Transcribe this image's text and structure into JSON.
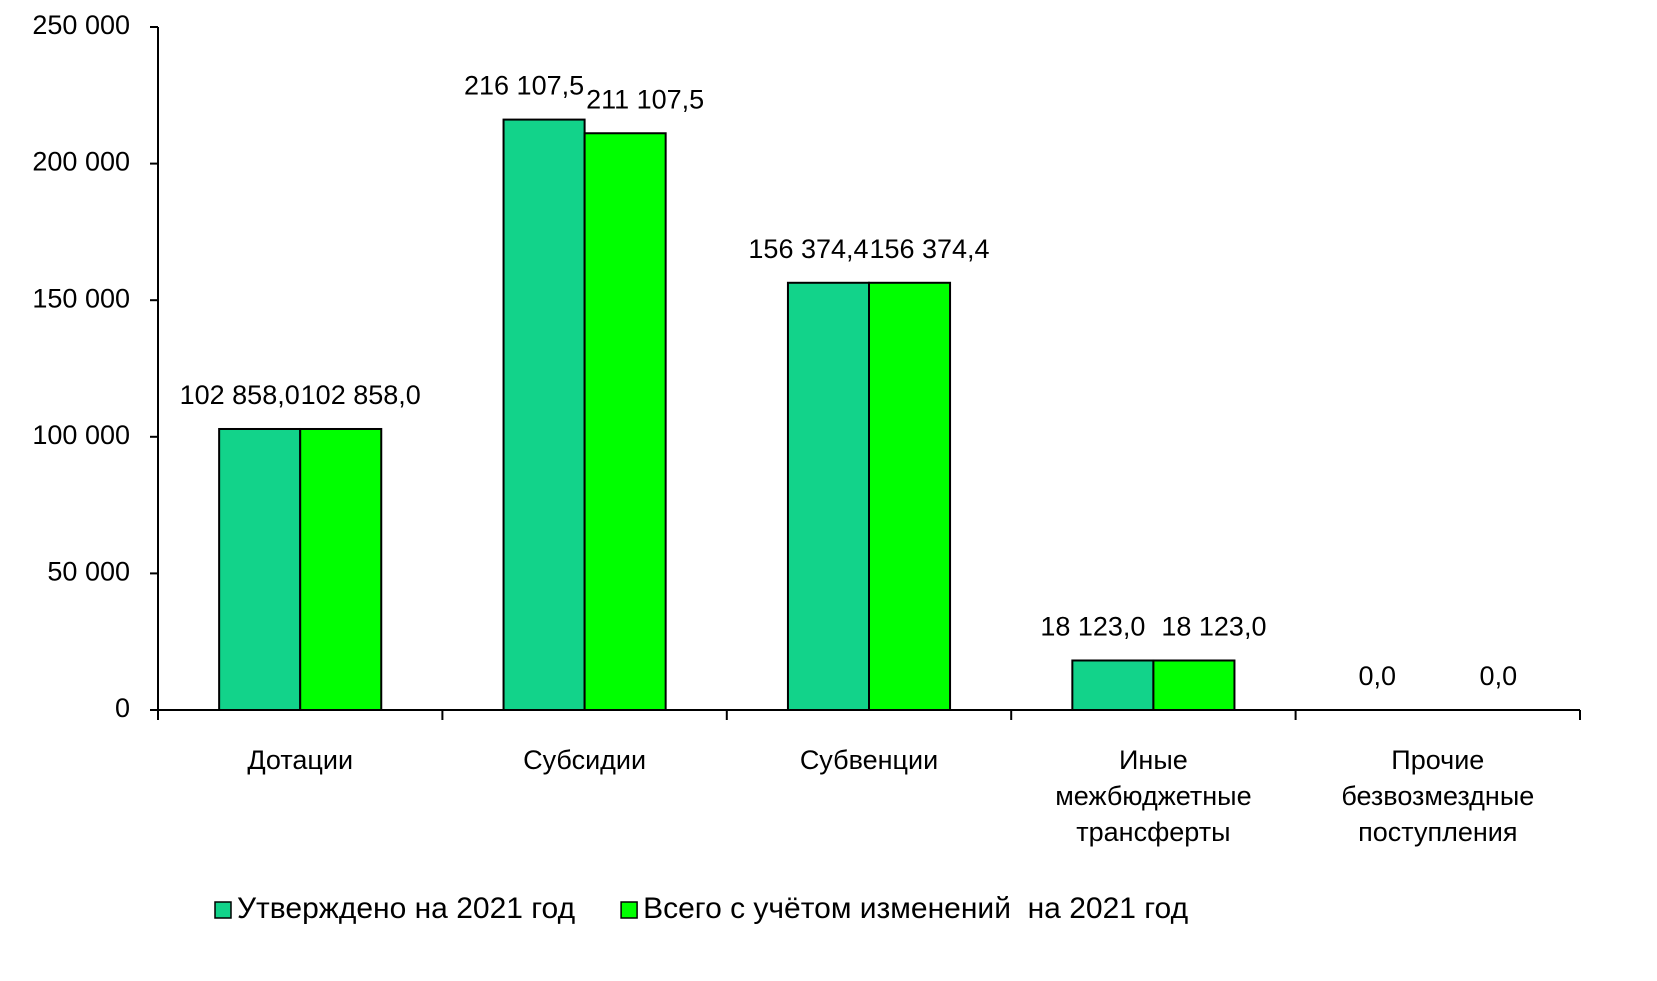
{
  "chart_data": {
    "type": "bar",
    "categories": [
      "Дотации",
      "Субсидии",
      "Субвенции",
      "Иные межбюджетные трансферты",
      "Прочие безвозмездные поступления"
    ],
    "series": [
      {
        "name": "Утверждено на 2021 год",
        "color": "#12d38a",
        "values": [
          102858.0,
          216107.5,
          156374.4,
          18123.0,
          0.0
        ],
        "value_labels": [
          "102 858,0",
          "216 107,5",
          "156 374,4",
          "18 123,0",
          "0,0"
        ]
      },
      {
        "name": "Всего с учётом изменений  на 2021 год",
        "color": "#00ff00",
        "values": [
          102858.0,
          211107.5,
          156374.4,
          18123.0,
          0.0
        ],
        "value_labels": [
          "102 858,0",
          "211 107,5",
          "156 374,4",
          "18 123,0",
          "0,0"
        ]
      }
    ],
    "ylim": [
      0,
      250000
    ],
    "yticks": [
      0,
      {
        "value": 50000,
        "label": "50 000"
      },
      {
        "value": 100000,
        "label": "100 000"
      },
      {
        "value": 150000,
        "label": "150 000"
      },
      {
        "value": 200000,
        "label": "200 000"
      },
      {
        "value": 250000,
        "label": "250 000"
      }
    ],
    "grid": false,
    "legend": "bottom"
  }
}
